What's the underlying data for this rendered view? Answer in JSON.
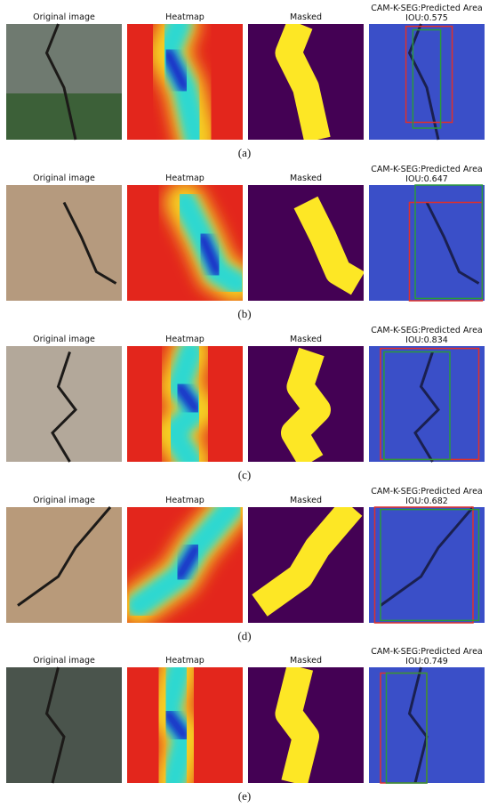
{
  "rows": [
    {
      "titles": [
        "Original image",
        "Heatmap",
        "Masked",
        "CAM-K-SEG:Predicted Area"
      ],
      "iou": "IOU:0.575",
      "label": "(a)"
    },
    {
      "titles": [
        "Original image",
        "Heatmap",
        "Masked",
        "CAM-K-SEG:Predicted Area"
      ],
      "iou": "IOU:0.647",
      "label": "(b)"
    },
    {
      "titles": [
        "Original image",
        "Heatmap",
        "Masked",
        "CAM-K-SEG:Predicted Area"
      ],
      "iou": "IOU:0.834",
      "label": "(c)"
    },
    {
      "titles": [
        "Original image",
        "Heatmap",
        "Masked",
        "CAM-K-SEG:Predicted Area"
      ],
      "iou": "IOU:0.682",
      "label": "(d)"
    },
    {
      "titles": [
        "Original image",
        "Heatmap",
        "Masked",
        "CAM-K-SEG:Predicted Area"
      ],
      "iou": "IOU:0.749",
      "label": "(e)"
    }
  ]
}
